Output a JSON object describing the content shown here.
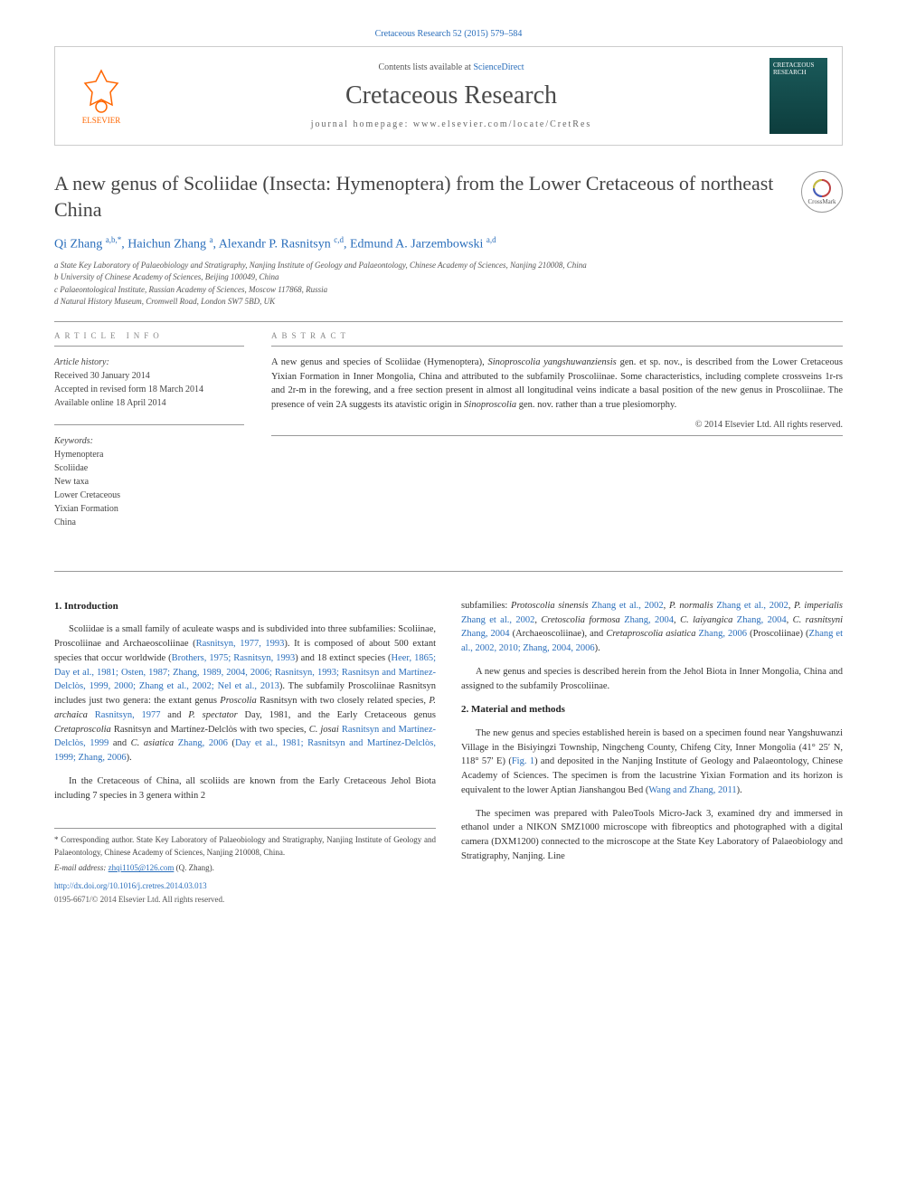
{
  "header": {
    "citation": "Cretaceous Research 52 (2015) 579–584",
    "contents_prefix": "Contents lists available at ",
    "contents_link": "ScienceDirect",
    "journal": "Cretaceous Research",
    "homepage_label": "journal homepage: ",
    "homepage_url": "www.elsevier.com/locate/CretRes",
    "publisher": "ELSEVIER",
    "cover_text": "CRETACEOUS RESEARCH"
  },
  "article": {
    "title": "A new genus of Scoliidae (Insecta: Hymenoptera) from the Lower Cretaceous of northeast China",
    "crossmark": "CrossMark",
    "authors_html": "Qi Zhang <sup>a,b,*</sup>, Haichun Zhang <sup>a</sup>, Alexandr P. Rasnitsyn <sup>c,d</sup>, Edmund A. Jarzembowski <sup>a,d</sup>",
    "affiliations": [
      "a State Key Laboratory of Palaeobiology and Stratigraphy, Nanjing Institute of Geology and Palaeontology, Chinese Academy of Sciences, Nanjing 210008, China",
      "b University of Chinese Academy of Sciences, Beijing 100049, China",
      "c Palaeontological Institute, Russian Academy of Sciences, Moscow 117868, Russia",
      "d Natural History Museum, Cromwell Road, London SW7 5BD, UK"
    ]
  },
  "info": {
    "label_info": "ARTICLE INFO",
    "label_abstract": "ABSTRACT",
    "history_label": "Article history:",
    "history": [
      "Received 30 January 2014",
      "Accepted in revised form 18 March 2014",
      "Available online 18 April 2014"
    ],
    "keywords_label": "Keywords:",
    "keywords": [
      "Hymenoptera",
      "Scoliidae",
      "New taxa",
      "Lower Cretaceous",
      "Yixian Formation",
      "China"
    ]
  },
  "abstract": {
    "text": "A new genus and species of Scoliidae (Hymenoptera), <em>Sinoproscolia yangshuwanziensis</em> gen. et sp. nov., is described from the Lower Cretaceous Yixian Formation in Inner Mongolia, China and attributed to the subfamily Proscoliinae. Some characteristics, including complete crossveins 1r-rs and 2r-m in the forewing, and a free section present in almost all longitudinal veins indicate a basal position of the new genus in Proscoliinae. The presence of vein 2A suggests its atavistic origin in <em>Sinoproscolia</em> gen. nov. rather than a true plesiomorphy.",
    "copyright": "© 2014 Elsevier Ltd. All rights reserved."
  },
  "body": {
    "intro_heading": "1. Introduction",
    "intro_p1": "Scoliidae is a small family of aculeate wasps and is subdivided into three subfamilies: Scoliinae, Proscoliinae and Archaeoscoliinae (<span class=\"ref-link\">Rasnitsyn, 1977, 1993</span>). It is composed of about 500 extant species that occur worldwide (<span class=\"ref-link\">Brothers, 1975; Rasnitsyn, 1993</span>) and 18 extinct species (<span class=\"ref-link\">Heer, 1865; Day et al., 1981; Osten, 1987; Zhang, 1989, 2004, 2006; Rasnitsyn, 1993; Rasnitsyn and Martínez-Delclòs, 1999, 2000; Zhang et al., 2002; Nel et al., 2013</span>). The subfamily Proscoliinae Rasnitsyn includes just two genera: the extant genus <em>Proscolia</em> Rasnitsyn with two closely related species, <em>P. archaica</em> <span class=\"ref-link\">Rasnitsyn, 1977</span> and <em>P. spectator</em> Day, 1981, and the Early Cretaceous genus <em>Cretaproscolia</em> Rasnitsyn and Martínez-Delclòs with two species, <em>C. josai</em> <span class=\"ref-link\">Rasnitsyn and Martínez-Delclòs, 1999</span> and <em>C. asiatica</em> <span class=\"ref-link\">Zhang, 2006</span> (<span class=\"ref-link\">Day et al., 1981; Rasnitsyn and Martínez-Delclòs, 1999; Zhang, 2006</span>).",
    "intro_p2": "In the Cretaceous of China, all scoliids are known from the Early Cretaceous Jehol Biota including 7 species in 3 genera within 2",
    "col2_p1": "subfamilies: <em>Protoscolia sinensis</em> <span class=\"ref-link\">Zhang et al., 2002</span>, <em>P. normalis</em> <span class=\"ref-link\">Zhang et al., 2002</span>, <em>P. imperialis</em> <span class=\"ref-link\">Zhang et al., 2002</span>, <em>Cretoscolia formosa</em> <span class=\"ref-link\">Zhang, 2004</span>, <em>C. laiyangica</em> <span class=\"ref-link\">Zhang, 2004</span>, <em>C. rasnitsyni</em> <span class=\"ref-link\">Zhang, 2004</span> (Archaeoscoliinae), and <em>Cretaproscolia asiatica</em> <span class=\"ref-link\">Zhang, 2006</span> (Proscoliinae) (<span class=\"ref-link\">Zhang et al., 2002, 2010; Zhang, 2004, 2006</span>).",
    "col2_p2": "A new genus and species is described herein from the Jehol Biota in Inner Mongolia, China and assigned to the subfamily Proscoliinae.",
    "methods_heading": "2. Material and methods",
    "methods_p1": "The new genus and species established herein is based on a specimen found near Yangshuwanzi Village in the Bisiyingzi Township, Ningcheng County, Chifeng City, Inner Mongolia (41° 25′ N, 118° 57′ E) (<span class=\"ref-link\">Fig. 1</span>) and deposited in the Nanjing Institute of Geology and Palaeontology, Chinese Academy of Sciences. The specimen is from the lacustrine Yixian Formation and its horizon is equivalent to the lower Aptian Jianshangou Bed (<span class=\"ref-link\">Wang and Zhang, 2011</span>).",
    "methods_p2": "The specimen was prepared with PaleoTools Micro-Jack 3, examined dry and immersed in ethanol under a NIKON SMZ1000 microscope with fibreoptics and photographed with a digital camera (DXM1200) connected to the microscope at the State Key Laboratory of Palaeobiology and Stratigraphy, Nanjing. Line"
  },
  "footer": {
    "corresponding": "* Corresponding author. State Key Laboratory of Palaeobiology and Stratigraphy, Nanjing Institute of Geology and Palaeontology, Chinese Academy of Sciences, Nanjing 210008, China.",
    "email_label": "E-mail address: ",
    "email": "zhqi1105@126.com",
    "email_who": " (Q. Zhang).",
    "doi": "http://dx.doi.org/10.1016/j.cretres.2014.03.013",
    "issn_copy": "0195-6671/© 2014 Elsevier Ltd. All rights reserved."
  },
  "colors": {
    "link": "#2a6ebb",
    "text": "#333333",
    "muted": "#888888",
    "orange": "#ff6600",
    "cover_bg": "#1a5a5a"
  }
}
